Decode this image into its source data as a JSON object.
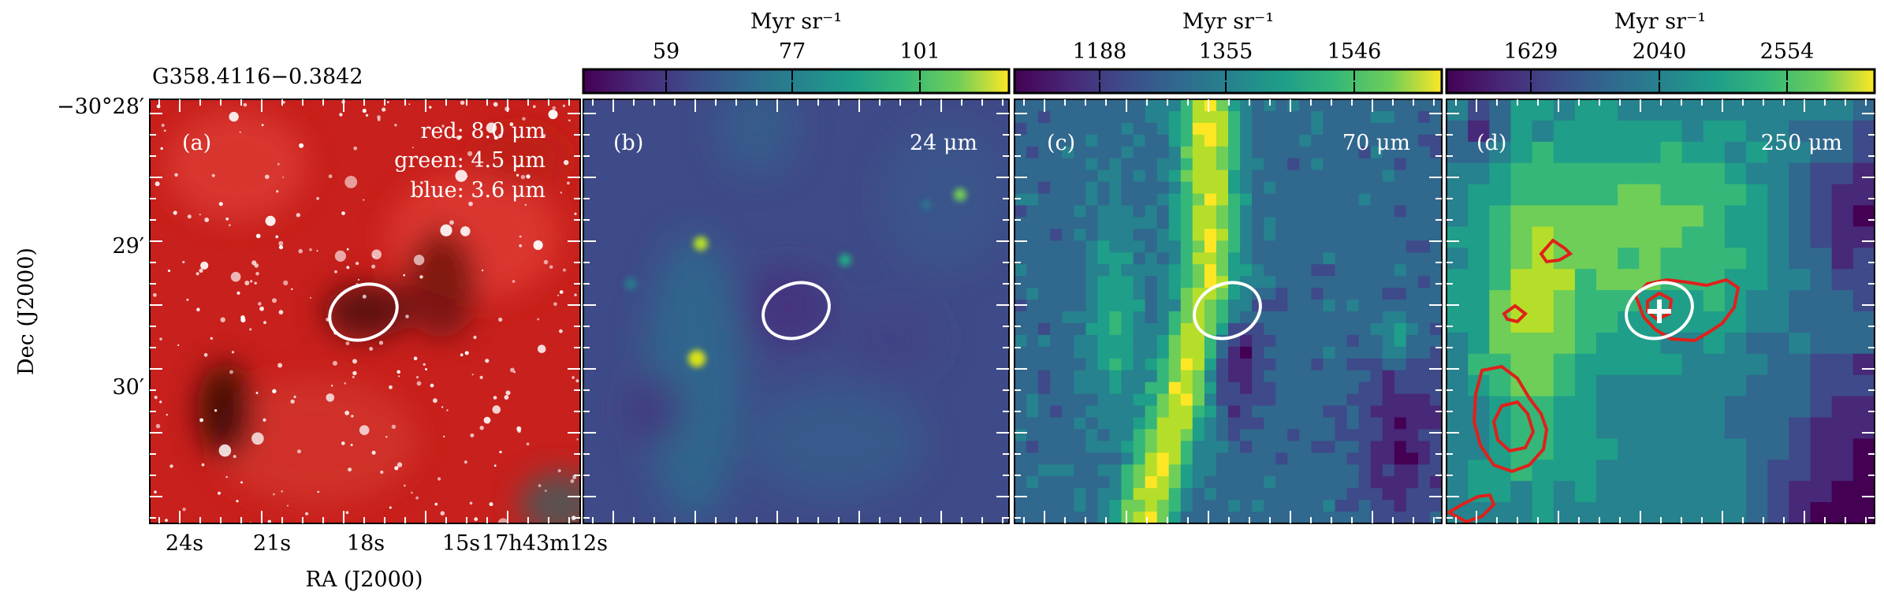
{
  "figure": {
    "source_name": "G358.4116−0.3842",
    "dec_axis_label": "Dec (J2000)",
    "ra_axis_label": "RA (J2000)",
    "dec_ticks": [
      "−30°28′",
      "29′",
      "30′"
    ],
    "ra_ticks": [
      "24s",
      "21s",
      "18s",
      "15s",
      "17h43m12s"
    ]
  },
  "panels": [
    {
      "id": "a",
      "tag": "(a)",
      "legend_lines": [
        "red: 8.0 μm",
        "green: 4.5 μm",
        "blue: 3.6 μm"
      ],
      "colormap": "rgb-composite"
    },
    {
      "id": "b",
      "tag": "(b)",
      "band": "24 μm",
      "colorbar_title": "Myr sr⁻¹",
      "colorbar_ticks": [
        "59",
        "77",
        "101"
      ],
      "colormap": "viridis"
    },
    {
      "id": "c",
      "tag": "(c)",
      "band": "70 μm",
      "colorbar_title": "Myr sr⁻¹",
      "colorbar_ticks": [
        "1188",
        "1355",
        "1546"
      ],
      "colormap": "viridis"
    },
    {
      "id": "d",
      "tag": "(d)",
      "band": "250 μm",
      "colorbar_title": "Myr sr⁻¹",
      "colorbar_ticks": [
        "1629",
        "2040",
        "2554"
      ],
      "colormap": "viridis",
      "contour_color": "#e0201a"
    }
  ],
  "colors": {
    "ellipse": "#ffffff",
    "marker": "#ffffff",
    "contour": "#e0201a"
  }
}
